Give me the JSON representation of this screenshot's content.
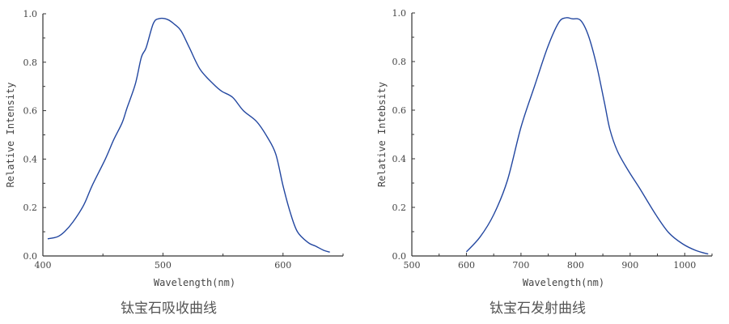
{
  "chart_data": [
    {
      "type": "line",
      "title": "钛宝石吸收曲线",
      "xlabel": "Wavelength(nm)",
      "ylabel": "Relative Intensity",
      "xlim": [
        400,
        650
      ],
      "ylim": [
        0,
        1.0
      ],
      "xticks": [
        "400",
        "500",
        "600"
      ],
      "yticks": [
        "0.0",
        "0.2",
        "0.4",
        "0.6",
        "0.8",
        "1.0"
      ],
      "grid": false,
      "line_color": "#2347a0",
      "x": [
        404,
        412,
        418,
        425,
        434,
        441,
        452,
        459,
        466,
        470,
        477,
        482,
        486,
        492,
        497,
        504,
        510,
        515,
        522,
        531,
        542,
        549,
        558,
        567,
        578,
        587,
        594,
        600,
        606,
        612,
        621,
        627,
        634,
        639
      ],
      "y": [
        0.071,
        0.079,
        0.1,
        0.14,
        0.21,
        0.29,
        0.4,
        0.48,
        0.55,
        0.61,
        0.71,
        0.82,
        0.86,
        0.96,
        0.98,
        0.976,
        0.955,
        0.93,
        0.86,
        0.77,
        0.71,
        0.68,
        0.655,
        0.6,
        0.555,
        0.49,
        0.42,
        0.29,
        0.18,
        0.1,
        0.055,
        0.041,
        0.023,
        0.016
      ]
    },
    {
      "type": "line",
      "title": "钛宝石发射曲线",
      "xlabel": "Wavelength(nm)",
      "ylabel": "Relative Intebsity",
      "xlim": [
        500,
        1050
      ],
      "ylim": [
        0,
        1.0
      ],
      "xticks": [
        "500",
        "600",
        "700",
        "800",
        "900",
        "1000"
      ],
      "yticks": [
        "0.0",
        "0.2",
        "0.4",
        "0.6",
        "0.8",
        "1.0"
      ],
      "grid": false,
      "line_color": "#2347a0",
      "x": [
        600,
        625,
        650,
        675,
        700,
        725,
        749,
        769,
        782,
        794,
        809,
        823,
        838,
        853,
        863,
        877,
        897,
        917,
        947,
        971,
        996,
        1021,
        1043
      ],
      "y": [
        0.017,
        0.078,
        0.17,
        0.31,
        0.53,
        0.7,
        0.86,
        0.96,
        0.98,
        0.976,
        0.97,
        0.91,
        0.79,
        0.63,
        0.52,
        0.43,
        0.35,
        0.28,
        0.17,
        0.095,
        0.05,
        0.022,
        0.008
      ]
    }
  ]
}
